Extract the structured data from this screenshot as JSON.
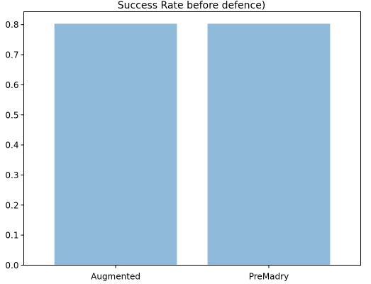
{
  "chart_data": {
    "type": "bar",
    "title": "Success Rate before defence)",
    "categories": [
      "Augmented",
      "PreMadry"
    ],
    "values": [
      0.803,
      0.803
    ],
    "xlabel": "",
    "ylabel": "",
    "ylim": [
      0,
      0.843
    ],
    "yticks": [
      "0.0",
      "0.1",
      "0.2",
      "0.3",
      "0.4",
      "0.5",
      "0.6",
      "0.7",
      "0.8"
    ],
    "bar_color": "#8fbad9",
    "grid": false,
    "legend": "none"
  }
}
